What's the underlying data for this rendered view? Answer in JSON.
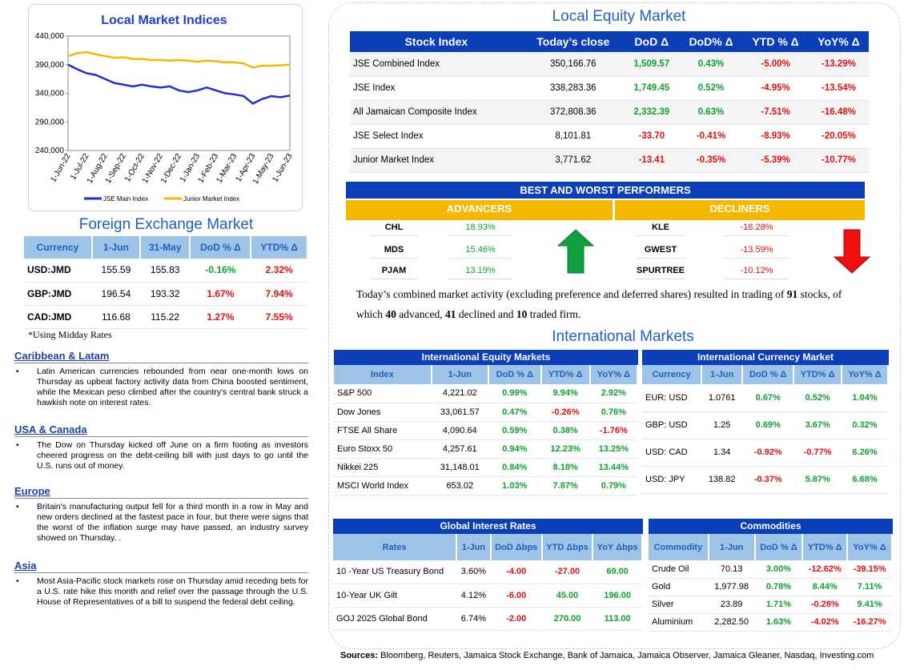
{
  "chart_data": {
    "type": "line",
    "title": "Local Market Indices",
    "categories": [
      "1-Jun-22",
      null,
      "1-Jul-22",
      null,
      "1-Aug-22",
      null,
      "1-Sep-22",
      null,
      "1-Oct-22",
      null,
      "1-Nov-22",
      null,
      "1-Dec-22",
      null,
      "1-Jan-23",
      null,
      "1-Feb-23",
      null,
      "1-Mar-23",
      null,
      "1-Apr-23",
      null,
      "1-May-23",
      null,
      "1-Jun-23"
    ],
    "series": [
      {
        "name": "JSE Main Index",
        "color": "#1f2fd0",
        "values": [
          390000,
          382000,
          375000,
          372000,
          365000,
          358000,
          355000,
          352000,
          355000,
          352000,
          350000,
          352000,
          345000,
          342000,
          345000,
          350000,
          345000,
          340000,
          338000,
          335000,
          322000,
          330000,
          335000,
          333000,
          336000
        ]
      },
      {
        "name": "Junior Market Index",
        "color": "#f5b800",
        "values": [
          405000,
          410000,
          412000,
          408000,
          405000,
          402000,
          403000,
          400000,
          400000,
          398000,
          398000,
          397000,
          398000,
          397000,
          395000,
          397000,
          396000,
          394000,
          394000,
          392000,
          385000,
          388000,
          388000,
          389000,
          390000
        ]
      }
    ],
    "ylim": [
      240000,
      440000
    ],
    "yticks": [
      {
        "value": 240000,
        "label": "240,000"
      },
      {
        "value": 290000,
        "label": "290,000"
      },
      {
        "value": 340000,
        "label": "340,000"
      },
      {
        "value": 390000,
        "label": "390,000"
      },
      {
        "value": 440000,
        "label": "440,000"
      }
    ]
  },
  "forex": {
    "title": "Foreign Exchange Market",
    "headers": [
      "Currency",
      "1-Jun",
      "31-May",
      "DoD % Δ",
      "YTD% Δ"
    ],
    "rows": [
      [
        "USD:JMD",
        "155.59",
        "155.83",
        "-0.16%",
        "2.32%"
      ],
      [
        "GBP:JMD",
        "196.54",
        "193.32",
        "1.67%",
        "7.94%"
      ],
      [
        "CAD:JMD",
        "116.68",
        "115.22",
        "1.27%",
        "7.55%"
      ]
    ],
    "note": "*Using Midday Rates"
  },
  "news": [
    {
      "heading": "Caribbean & Latam",
      "text": "Latin American currencies rebounded from near one-month lows on Thursday as upbeat factory activity data from China boosted sentiment, while the Mexican peso climbed after the country's central bank struck a hawkish note on interest rates."
    },
    {
      "heading": "USA & Canada",
      "text": "The Dow on Thursday kicked off June on a firm footing as investors cheered progress on the debt-ceiling bill with just days to go until the U.S. runs out of money."
    },
    {
      "heading": "Europe",
      "text": "Britain's manufacturing output fell for a third month in a row in May and new orders declined at the fastest pace in four, but there were signs that the worst of the inflation surge may have passed, an industry survey showed on Thursday. ."
    },
    {
      "heading": "Asia",
      "text": "Most Asia-Pacific stock markets rose on Thursday amid receding bets for a U.S. rate hike this month and relief over the passage through the U.S. House of Representatives of a bill to suspend the federal debt ceiling."
    }
  ],
  "equity": {
    "title": "Local Equity Market",
    "headers": [
      "Stock Index",
      "Today’s close",
      "DoD  Δ",
      "DoD% Δ",
      "YTD % Δ",
      "YoY% Δ"
    ],
    "rows": [
      [
        "JSE Combined Index",
        "350,166.76",
        "1,509.57",
        "0.43%",
        "-5.00%",
        "-13.29%"
      ],
      [
        "JSE Index",
        "338,283.36",
        "1,749.45",
        "0.52%",
        "-4.95%",
        "-13.54%"
      ],
      [
        "All Jamaican Composite Index",
        "372,808.36",
        "2,332.39",
        "0.63%",
        "-7.51%",
        "-16.48%"
      ],
      [
        "JSE Select Index",
        "8,101.81",
        "-33.70",
        "-0.41%",
        "-8.93%",
        "-20.05%"
      ],
      [
        "Junior Market Index",
        "3,771.62",
        "-13.41",
        "-0.35%",
        "-5.39%",
        "-10.77%"
      ]
    ]
  },
  "performers": {
    "title": "BEST AND WORST PERFORMERS",
    "advancers_label": "ADVANCERS",
    "decliners_label": "DECLINERS",
    "advancers": [
      [
        "CHL",
        "18.93%"
      ],
      [
        "MDS",
        "15.46%"
      ],
      [
        "PJAM",
        "13.19%"
      ]
    ],
    "decliners": [
      [
        "KLE",
        "-18.28%"
      ],
      [
        "GWEST",
        "-13.59%"
      ],
      [
        "SPURTREE",
        "-10.12%"
      ]
    ]
  },
  "summary": [
    "Today’s combined market activity (excluding preference and deferred shares) resulted in trading of ",
    "91",
    " stocks, of which ",
    "40",
    " advanced, ",
    "41",
    " declined and ",
    "10",
    " traded firm."
  ],
  "intl_title": "International Markets",
  "intl_equity": {
    "title": "International Equity Markets",
    "headers": [
      "Index",
      "1-Jun",
      "DoD % Δ",
      "YTD% Δ",
      "YoY% Δ"
    ],
    "rows": [
      [
        "S&P 500",
        "4,221.02",
        "0.99%",
        "9.94%",
        "2.92%"
      ],
      [
        "Dow Jones",
        "33,061.57",
        "0.47%",
        "-0.26%",
        "0.76%"
      ],
      [
        "FTSE All Share",
        "4,090.64",
        "0.59%",
        "0.38%",
        "-1.76%"
      ],
      [
        "Euro Stoxx 50",
        "4,257.61",
        "0.94%",
        "12.23%",
        "13.25%"
      ],
      [
        "Nikkei 225",
        "31,148.01",
        "0.84%",
        "8.18%",
        "13.44%"
      ],
      [
        "MSCI World Index",
        "653.02",
        "1.03%",
        "7.87%",
        "0.79%"
      ]
    ]
  },
  "intl_currency": {
    "title": "International Currency Market",
    "headers": [
      "Currency",
      "1-Jun",
      "DoD % Δ",
      "YTD% Δ",
      "YoY% Δ"
    ],
    "rows": [
      [
        "EUR: USD",
        "1.0761",
        "0.67%",
        "0.52%",
        "1.04%"
      ],
      [
        "GBP: USD",
        "1.25",
        "0.69%",
        "3.67%",
        "0.32%"
      ],
      [
        "USD: CAD",
        "1.34",
        "-0.92%",
        "-0.77%",
        "6.26%"
      ],
      [
        "USD: JPY",
        "138.82",
        "-0.37%",
        "5.87%",
        "6.68%"
      ]
    ]
  },
  "interest": {
    "title": "Global Interest Rates",
    "headers": [
      "Rates",
      "1-Jun",
      "DoD Δbps",
      "YTD Δbps",
      "YoY Δbps"
    ],
    "rows": [
      [
        "10 -Year US Treasury Bond",
        "3.60%",
        "-4.00",
        "-27.00",
        "69.00"
      ],
      [
        "10-Year UK Gilt",
        "4.12%",
        "-6.00",
        "45.00",
        "196.00"
      ],
      [
        "GOJ 2025 Global Bond",
        "6.74%",
        "-2.00",
        "270.00",
        "113.00"
      ]
    ]
  },
  "commodities": {
    "title": "Commodities",
    "headers": [
      "Commodity",
      "1-Jun",
      "DoD % Δ",
      "YTD% Δ",
      "YoY% Δ"
    ],
    "rows": [
      [
        "Crude Oil",
        "70.13",
        "3.00%",
        "-12.62%",
        "-39.15%"
      ],
      [
        "Gold",
        "1,977.98",
        "0.78%",
        "8.44%",
        "7.11%"
      ],
      [
        "Silver",
        "23.89",
        "1.71%",
        "-0.28%",
        "9.41%"
      ],
      [
        "Aluminium",
        "2,282.50",
        "1.63%",
        "-4.02%",
        "-16.27%"
      ]
    ]
  },
  "sources": {
    "label": "Sources:",
    "text": "Bloomberg, Reuters, Jamaica Stock Exchange, Bank of Jamaica, Jamaica Observer, Jamaica Gleaner, Nasdaq, Investing.com"
  }
}
